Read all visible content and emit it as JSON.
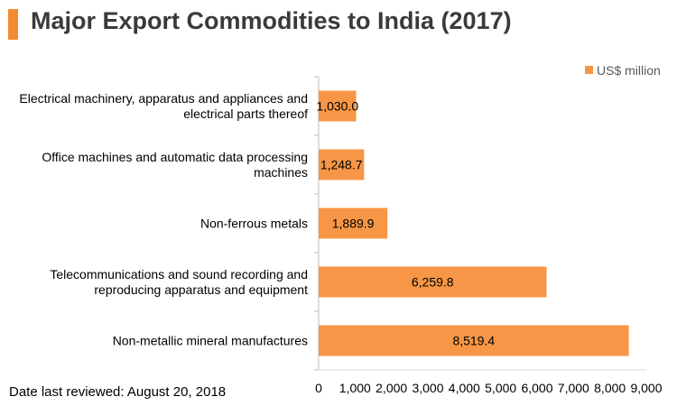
{
  "header": {
    "title": "Major Export Commodities to India (2017)",
    "accent_color": "#f28b2f"
  },
  "footer": {
    "note": "Date last reviewed: August 20, 2018"
  },
  "chart_data": {
    "type": "bar",
    "orientation": "horizontal",
    "title": "Major Export Commodities to India (2017)",
    "xlabel": "",
    "ylabel": "",
    "xlim": [
      0,
      9000
    ],
    "xticks": [
      0,
      1000,
      2000,
      3000,
      4000,
      5000,
      6000,
      7000,
      8000,
      9000
    ],
    "xtick_labels": [
      "0",
      "1,000",
      "2,000",
      "3,000",
      "4,000",
      "5,000",
      "6,000",
      "7,000",
      "8,000",
      "9,000"
    ],
    "grid": false,
    "legend_position": "top-right",
    "categories": [
      [
        "Electrical machinery, apparatus and appliances and",
        "electrical parts thereof"
      ],
      [
        "Office machines and automatic data processing",
        "machines"
      ],
      [
        "Non-ferrous metals"
      ],
      [
        "Telecommunications and sound recording and",
        "reproducing apparatus and equipment"
      ],
      [
        "Non-metallic mineral manufactures"
      ]
    ],
    "series": [
      {
        "name": "US$ million",
        "color": "#f79646",
        "values": [
          1030.0,
          1248.7,
          1889.9,
          6259.8,
          8519.4
        ],
        "labels": [
          "1,030.0",
          "1,248.7",
          "1,889.9",
          "6,259.8",
          "8,519.4"
        ]
      }
    ]
  }
}
